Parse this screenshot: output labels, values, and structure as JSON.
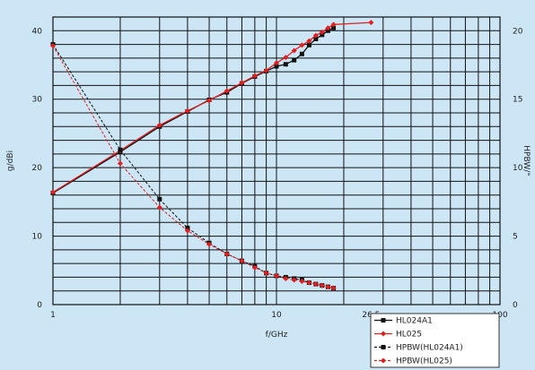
{
  "chart_data": {
    "type": "line",
    "title": "",
    "xlabel": "f/GHz",
    "ylabel": "g/dBi",
    "y2label": "HPBW/°",
    "x_scale": "log",
    "xlim": [
      1,
      100
    ],
    "ylim": [
      0,
      42
    ],
    "y2lim": [
      0,
      21
    ],
    "grid": true,
    "legend_position": "bottom-right",
    "x_ticks": [
      {
        "value": 1,
        "label": "1"
      },
      {
        "value": 10,
        "label": "10"
      },
      {
        "value": 26.5,
        "label": "26,5"
      },
      {
        "value": 100,
        "label": "100"
      }
    ],
    "y_ticks": [
      0,
      10,
      20,
      30,
      40
    ],
    "y2_ticks": [
      0,
      5,
      10,
      15,
      20
    ],
    "series": [
      {
        "name": "HL024A1",
        "axis": "left",
        "color": "#111111",
        "marker": "square",
        "dashed": false,
        "x": [
          1,
          2,
          3,
          4,
          5,
          6,
          7,
          8,
          9,
          10,
          11,
          12,
          13,
          14,
          15,
          16,
          17,
          18
        ],
        "y": [
          16.3,
          22.3,
          26.0,
          28.2,
          29.9,
          31.0,
          32.3,
          33.3,
          34.1,
          34.8,
          35.1,
          35.7,
          36.6,
          37.9,
          38.8,
          39.4,
          40.0,
          40.4
        ]
      },
      {
        "name": "HL025",
        "axis": "left",
        "color": "#e02020",
        "marker": "diamond",
        "dashed": false,
        "x": [
          1,
          2,
          3,
          4,
          5,
          6,
          7,
          8,
          9,
          10,
          11,
          12,
          13,
          14,
          15,
          16,
          17,
          18,
          26.5
        ],
        "y": [
          16.4,
          22.5,
          26.2,
          28.3,
          29.8,
          31.2,
          32.4,
          33.4,
          34.2,
          35.3,
          36.1,
          37.1,
          37.9,
          38.5,
          39.3,
          39.8,
          40.4,
          40.9,
          41.2
        ]
      },
      {
        "name": "HPBW(HL024A1)",
        "axis": "right",
        "color": "#111111",
        "marker": "square",
        "dashed": true,
        "x": [
          1,
          2,
          3,
          4,
          5,
          6,
          7,
          8,
          9,
          10,
          11,
          12,
          13,
          14,
          15,
          16,
          17,
          18
        ],
        "y": [
          19.0,
          11.3,
          7.7,
          5.6,
          4.5,
          3.7,
          3.2,
          2.8,
          2.3,
          2.1,
          2.0,
          1.9,
          1.8,
          1.6,
          1.5,
          1.4,
          1.3,
          1.2
        ]
      },
      {
        "name": "HPBW(HL025)",
        "axis": "right",
        "color": "#e02020",
        "marker": "diamond",
        "dashed": true,
        "x": [
          1,
          2,
          3,
          4,
          5,
          6,
          7,
          8,
          9,
          10,
          11,
          12,
          13,
          14,
          15,
          16,
          17,
          18
        ],
        "y": [
          18.9,
          10.3,
          7.1,
          5.4,
          4.4,
          3.7,
          3.2,
          2.7,
          2.3,
          2.1,
          1.9,
          1.8,
          1.7,
          1.6,
          1.5,
          1.4,
          1.3,
          1.2
        ]
      }
    ]
  }
}
